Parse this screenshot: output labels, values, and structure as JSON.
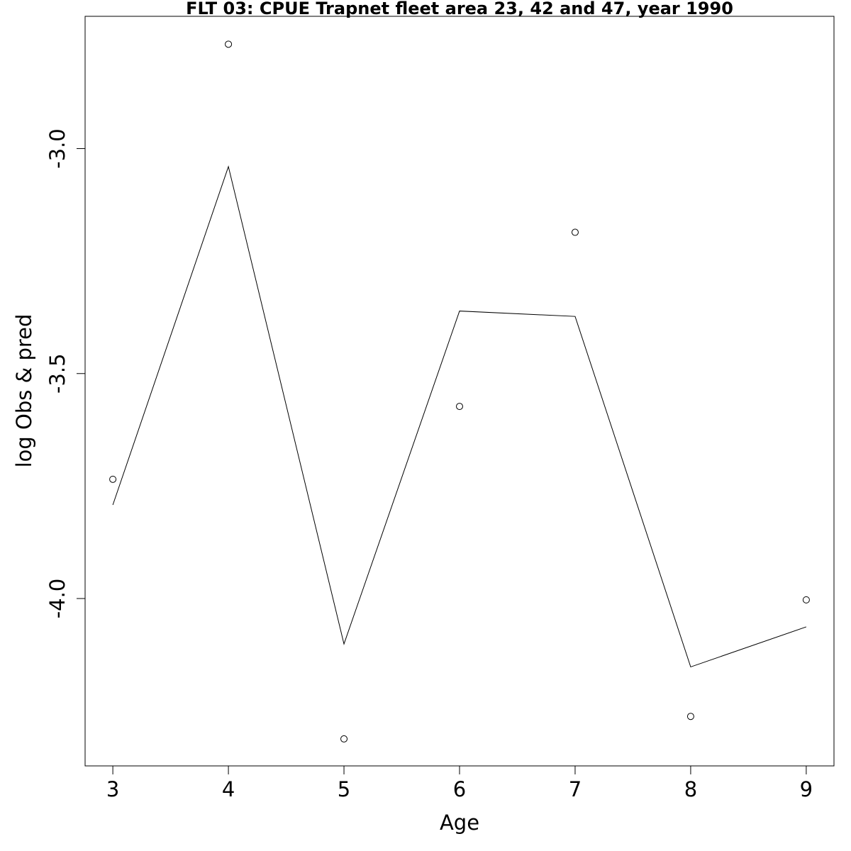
{
  "chart_data": {
    "type": "line",
    "title": "FLT 03: CPUE Trapnet fleet area 23, 42 and 47, year 1990",
    "xlabel": "Age",
    "ylabel": "log Obs & pred",
    "x": [
      3,
      4,
      5,
      6,
      7,
      8,
      9
    ],
    "xticks": [
      "3",
      "4",
      "5",
      "6",
      "7",
      "8",
      "9"
    ],
    "yticks": [
      {
        "value": -3.0,
        "label": "-3.0"
      },
      {
        "value": -3.5,
        "label": "-3.5"
      },
      {
        "value": -4.0,
        "label": "-4.0"
      }
    ],
    "xlim": [
      2.76,
      9.24
    ],
    "ylim": [
      -4.372,
      -2.706
    ],
    "grid": false,
    "series": [
      {
        "kind": "points",
        "marker": "open-circle",
        "values": [
          -3.735,
          -2.768,
          -4.312,
          -3.573,
          -3.186,
          -4.262,
          -4.003
        ]
      },
      {
        "kind": "line",
        "values": [
          -3.792,
          -3.04,
          -4.101,
          -3.361,
          -3.373,
          -4.152,
          -4.063
        ]
      }
    ]
  }
}
